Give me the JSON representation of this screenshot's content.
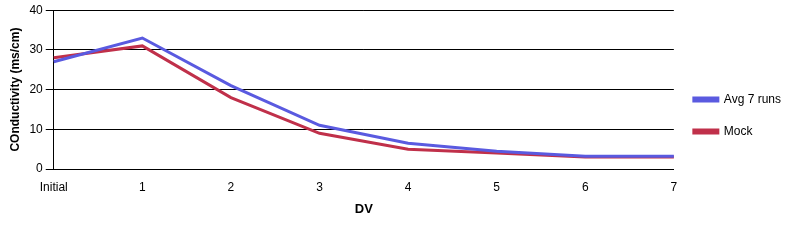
{
  "chart_data": {
    "type": "line",
    "x_label": "DV",
    "y_label": "COnductivity (ms/cm)",
    "categories": [
      "Initial",
      "1",
      "2",
      "3",
      "4",
      "5",
      "6",
      "7"
    ],
    "series": [
      {
        "name": "Avg 7 runs",
        "color": "#5a5ae0",
        "values": [
          27,
          33,
          21,
          11,
          6.5,
          4.5,
          3.2,
          3.2
        ]
      },
      {
        "name": "Mock",
        "color": "#c0304a",
        "values": [
          28,
          31,
          18,
          9,
          5,
          4,
          3,
          3
        ]
      }
    ],
    "ylim": [
      0,
      40
    ],
    "yticks": [
      0,
      10,
      20,
      30,
      40
    ],
    "grid": true,
    "legend": "right"
  }
}
